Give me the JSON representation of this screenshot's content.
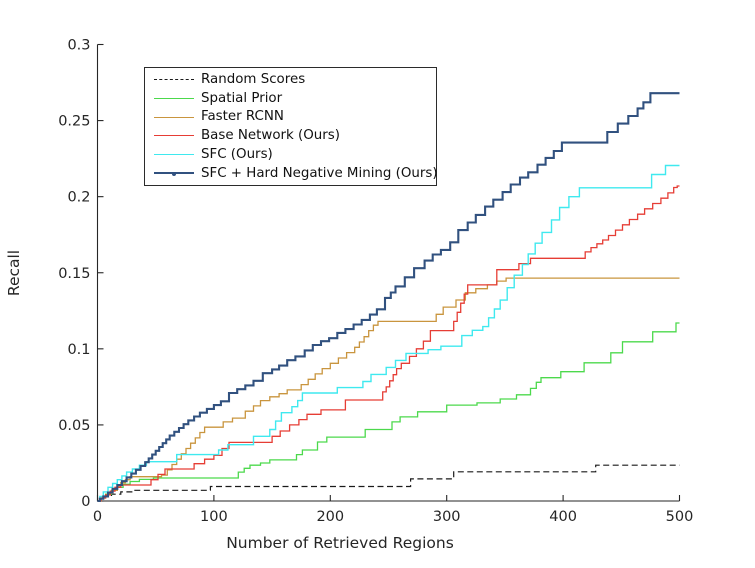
{
  "axes": {
    "xlim": [
      0,
      500
    ],
    "ylim": [
      0,
      0.3
    ],
    "xticks": [
      0,
      100,
      200,
      300,
      400,
      500
    ],
    "xtick_labels": [
      "0",
      "100",
      "200",
      "300",
      "400",
      "500"
    ],
    "yticks": [
      0,
      0.05,
      0.1,
      0.15,
      0.2,
      0.25,
      0.3
    ],
    "ytick_labels": [
      "0",
      "0.05",
      "0.1",
      "0.15",
      "0.2",
      "0.25",
      "0.3"
    ],
    "axis_color": "#262626",
    "tick_label_color": "#262626",
    "background": "#ffffff"
  },
  "legend": {
    "border_color": "#2b2b2b",
    "background": "#ffffff",
    "position": "upper-left-inside"
  },
  "chart_data": {
    "type": "line",
    "step": "post",
    "title": "",
    "xlabel": "Number of Retrieved Regions",
    "ylabel": "Recall",
    "xlim": [
      0,
      500
    ],
    "ylim": [
      0,
      0.3
    ],
    "grid": false,
    "legend_position": "upper left inside",
    "series": [
      {
        "name": "Random Scores",
        "color": "#1a1a1a",
        "dash": "dashed",
        "line_width": 1.2,
        "marker": "none",
        "points": [
          [
            0,
            0
          ],
          [
            2,
            0.0015
          ],
          [
            6,
            0.003
          ],
          [
            12,
            0.0045
          ],
          [
            20,
            0.006
          ],
          [
            30,
            0.007
          ],
          [
            97,
            0.0095
          ],
          [
            269,
            0.0145
          ],
          [
            306,
            0.0192
          ],
          [
            428,
            0.0235
          ],
          [
            500,
            0.0235
          ]
        ]
      },
      {
        "name": "Spatial Prior",
        "color": "#4cd94c",
        "dash": "solid",
        "line_width": 1.3,
        "marker": "none",
        "points": [
          [
            0,
            0
          ],
          [
            3,
            0.002
          ],
          [
            7,
            0.0045
          ],
          [
            12,
            0.007
          ],
          [
            17,
            0.009
          ],
          [
            22,
            0.011
          ],
          [
            28,
            0.0128
          ],
          [
            36,
            0.0142
          ],
          [
            48,
            0.0151
          ],
          [
            121,
            0.019
          ],
          [
            126,
            0.0215
          ],
          [
            131,
            0.0235
          ],
          [
            140,
            0.025
          ],
          [
            148,
            0.027
          ],
          [
            171,
            0.0305
          ],
          [
            176,
            0.0335
          ],
          [
            189,
            0.0388
          ],
          [
            197,
            0.042
          ],
          [
            230,
            0.047
          ],
          [
            253,
            0.052
          ],
          [
            260,
            0.0553
          ],
          [
            275,
            0.0586
          ],
          [
            300,
            0.063
          ],
          [
            326,
            0.0645
          ],
          [
            346,
            0.067
          ],
          [
            360,
            0.0698
          ],
          [
            372,
            0.074
          ],
          [
            377,
            0.078
          ],
          [
            381,
            0.081
          ],
          [
            398,
            0.085
          ],
          [
            418,
            0.0908
          ],
          [
            441,
            0.0974
          ],
          [
            451,
            0.1046
          ],
          [
            477,
            0.1112
          ],
          [
            497,
            0.117
          ],
          [
            500,
            0.117
          ]
        ]
      },
      {
        "name": "Faster RCNN",
        "color": "#c9953e",
        "dash": "solid",
        "line_width": 1.3,
        "marker": "none",
        "points": [
          [
            0,
            0
          ],
          [
            2,
            0.0015
          ],
          [
            5,
            0.003
          ],
          [
            9,
            0.005
          ],
          [
            13,
            0.007
          ],
          [
            17,
            0.0095
          ],
          [
            20,
            0.012
          ],
          [
            24,
            0.014
          ],
          [
            28,
            0.016
          ],
          [
            55,
            0.017
          ],
          [
            60,
            0.0205
          ],
          [
            64,
            0.024
          ],
          [
            68,
            0.0275
          ],
          [
            72,
            0.031
          ],
          [
            76,
            0.0345
          ],
          [
            80,
            0.038
          ],
          [
            84,
            0.0415
          ],
          [
            88,
            0.045
          ],
          [
            92,
            0.0485
          ],
          [
            108,
            0.052
          ],
          [
            116,
            0.0545
          ],
          [
            127,
            0.059
          ],
          [
            134,
            0.0625
          ],
          [
            140,
            0.066
          ],
          [
            148,
            0.0685
          ],
          [
            156,
            0.0705
          ],
          [
            163,
            0.073
          ],
          [
            175,
            0.0765
          ],
          [
            181,
            0.08
          ],
          [
            187,
            0.0835
          ],
          [
            193,
            0.087
          ],
          [
            200,
            0.0905
          ],
          [
            207,
            0.094
          ],
          [
            214,
            0.0975
          ],
          [
            221,
            0.101
          ],
          [
            225,
            0.1045
          ],
          [
            229,
            0.108
          ],
          [
            233,
            0.112
          ],
          [
            237,
            0.1155
          ],
          [
            241,
            0.118
          ],
          [
            291,
            0.1227
          ],
          [
            297,
            0.1274
          ],
          [
            308,
            0.1321
          ],
          [
            316,
            0.1368
          ],
          [
            325,
            0.1395
          ],
          [
            335,
            0.142
          ],
          [
            343,
            0.1445
          ],
          [
            351,
            0.1465
          ],
          [
            500,
            0.1465
          ]
        ]
      },
      {
        "name": "Base Network (Ours)",
        "color": "#e63d35",
        "dash": "solid",
        "line_width": 1.3,
        "marker": "none",
        "points": [
          [
            0,
            0
          ],
          [
            3,
            0.002
          ],
          [
            7,
            0.004
          ],
          [
            11,
            0.0065
          ],
          [
            15,
            0.009
          ],
          [
            20,
            0.0105
          ],
          [
            46,
            0.014
          ],
          [
            52,
            0.0175
          ],
          [
            58,
            0.021
          ],
          [
            83,
            0.0245
          ],
          [
            92,
            0.0275
          ],
          [
            100,
            0.03
          ],
          [
            107,
            0.0345
          ],
          [
            113,
            0.0385
          ],
          [
            150,
            0.0425
          ],
          [
            157,
            0.046
          ],
          [
            165,
            0.05
          ],
          [
            173,
            0.0535
          ],
          [
            180,
            0.057
          ],
          [
            192,
            0.0599
          ],
          [
            213,
            0.0664
          ],
          [
            245,
            0.0717
          ],
          [
            248,
            0.075
          ],
          [
            251,
            0.079
          ],
          [
            254,
            0.083
          ],
          [
            257,
            0.087
          ],
          [
            261,
            0.0905
          ],
          [
            268,
            0.095
          ],
          [
            274,
            0.1
          ],
          [
            280,
            0.105
          ],
          [
            286,
            0.112
          ],
          [
            306,
            0.118
          ],
          [
            309,
            0.124
          ],
          [
            312,
            0.13
          ],
          [
            315,
            0.136
          ],
          [
            318,
            0.142
          ],
          [
            343,
            0.152
          ],
          [
            362,
            0.156
          ],
          [
            372,
            0.1595
          ],
          [
            419,
            0.1637
          ],
          [
            424,
            0.1665
          ],
          [
            429,
            0.169
          ],
          [
            434,
            0.1715
          ],
          [
            439,
            0.1745
          ],
          [
            445,
            0.178
          ],
          [
            451,
            0.1815
          ],
          [
            457,
            0.185
          ],
          [
            464,
            0.1885
          ],
          [
            470,
            0.192
          ],
          [
            477,
            0.1955
          ],
          [
            484,
            0.199
          ],
          [
            490,
            0.2025
          ],
          [
            495,
            0.206
          ],
          [
            498,
            0.207
          ],
          [
            500,
            0.207
          ]
        ]
      },
      {
        "name": "SFC (Ours)",
        "color": "#3fe9ef",
        "dash": "solid",
        "line_width": 1.4,
        "marker": "none",
        "points": [
          [
            0,
            0
          ],
          [
            2,
            0.003
          ],
          [
            5,
            0.006
          ],
          [
            9,
            0.009
          ],
          [
            13,
            0.0115
          ],
          [
            17,
            0.014
          ],
          [
            21,
            0.0165
          ],
          [
            25,
            0.019
          ],
          [
            30,
            0.021
          ],
          [
            36,
            0.0235
          ],
          [
            42,
            0.0258
          ],
          [
            68,
            0.0305
          ],
          [
            104,
            0.0335
          ],
          [
            112,
            0.037
          ],
          [
            134,
            0.0425
          ],
          [
            148,
            0.047
          ],
          [
            153,
            0.0525
          ],
          [
            158,
            0.058
          ],
          [
            167,
            0.062
          ],
          [
            172,
            0.066
          ],
          [
            176,
            0.071
          ],
          [
            206,
            0.0745
          ],
          [
            228,
            0.0785
          ],
          [
            235,
            0.0832
          ],
          [
            248,
            0.0878
          ],
          [
            256,
            0.0924
          ],
          [
            265,
            0.097
          ],
          [
            284,
            0.0994
          ],
          [
            295,
            0.1017
          ],
          [
            313,
            0.1087
          ],
          [
            322,
            0.1122
          ],
          [
            331,
            0.1146
          ],
          [
            336,
            0.1204
          ],
          [
            341,
            0.1262
          ],
          [
            346,
            0.132
          ],
          [
            352,
            0.1402
          ],
          [
            358,
            0.1484
          ],
          [
            365,
            0.1554
          ],
          [
            370,
            0.1624
          ],
          [
            376,
            0.1694
          ],
          [
            382,
            0.1765
          ],
          [
            390,
            0.1847
          ],
          [
            397,
            0.1929
          ],
          [
            405,
            0.2
          ],
          [
            414,
            0.2058
          ],
          [
            476,
            0.2146
          ],
          [
            488,
            0.2205
          ],
          [
            500,
            0.2205
          ]
        ]
      },
      {
        "name": "SFC + Hard Negative Mining (Ours)",
        "color": "#31517f",
        "dash": "solid",
        "line_width": 2.1,
        "marker": "point",
        "points": [
          [
            0,
            0
          ],
          [
            2,
            0.0015
          ],
          [
            5,
            0.003
          ],
          [
            9,
            0.0055
          ],
          [
            13,
            0.008
          ],
          [
            17,
            0.0105
          ],
          [
            21,
            0.013
          ],
          [
            25,
            0.0155
          ],
          [
            29,
            0.018
          ],
          [
            33,
            0.0205
          ],
          [
            37,
            0.023
          ],
          [
            41,
            0.0255
          ],
          [
            44,
            0.028
          ],
          [
            47,
            0.0305
          ],
          [
            50,
            0.033
          ],
          [
            53,
            0.0355
          ],
          [
            56,
            0.038
          ],
          [
            59,
            0.0405
          ],
          [
            62,
            0.043
          ],
          [
            66,
            0.0455
          ],
          [
            70,
            0.048
          ],
          [
            74,
            0.0505
          ],
          [
            78,
            0.053
          ],
          [
            83,
            0.0555
          ],
          [
            88,
            0.058
          ],
          [
            94,
            0.0605
          ],
          [
            100,
            0.063
          ],
          [
            106,
            0.0655
          ],
          [
            113,
            0.071
          ],
          [
            120,
            0.0735
          ],
          [
            127,
            0.076
          ],
          [
            134,
            0.079
          ],
          [
            142,
            0.084
          ],
          [
            150,
            0.0865
          ],
          [
            156,
            0.089
          ],
          [
            163,
            0.0925
          ],
          [
            170,
            0.095
          ],
          [
            178,
            0.099
          ],
          [
            185,
            0.1025
          ],
          [
            192,
            0.105
          ],
          [
            199,
            0.107
          ],
          [
            206,
            0.1105
          ],
          [
            213,
            0.113
          ],
          [
            220,
            0.116
          ],
          [
            227,
            0.119
          ],
          [
            234,
            0.1225
          ],
          [
            240,
            0.126
          ],
          [
            247,
            0.1335
          ],
          [
            252,
            0.137
          ],
          [
            256,
            0.141
          ],
          [
            264,
            0.147
          ],
          [
            272,
            0.153
          ],
          [
            281,
            0.158
          ],
          [
            288,
            0.162
          ],
          [
            295,
            0.165
          ],
          [
            303,
            0.17
          ],
          [
            310,
            0.178
          ],
          [
            318,
            0.183
          ],
          [
            325,
            0.188
          ],
          [
            333,
            0.1935
          ],
          [
            340,
            0.198
          ],
          [
            348,
            0.203
          ],
          [
            355,
            0.208
          ],
          [
            363,
            0.2125
          ],
          [
            370,
            0.216
          ],
          [
            378,
            0.221
          ],
          [
            385,
            0.2255
          ],
          [
            392,
            0.23
          ],
          [
            399,
            0.2355
          ],
          [
            438,
            0.2425
          ],
          [
            447,
            0.248
          ],
          [
            456,
            0.253
          ],
          [
            464,
            0.258
          ],
          [
            469,
            0.262
          ],
          [
            475,
            0.268
          ],
          [
            500,
            0.268
          ]
        ]
      }
    ]
  }
}
